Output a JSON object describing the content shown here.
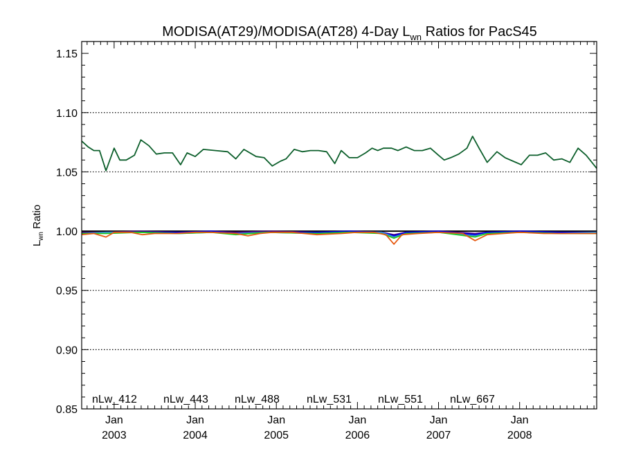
{
  "chart_data": {
    "type": "line",
    "title_main": "MODISA(AT29)/MODISA(AT28) 4-Day L",
    "title_sub": "wn",
    "title_rest": " Ratios for PacS45",
    "ylabel_main": "L",
    "ylabel_sub": "wn",
    "ylabel_rest": " Ratio",
    "ylim": [
      0.85,
      1.16
    ],
    "yticks": [
      0.85,
      0.9,
      0.95,
      1.0,
      1.05,
      1.1,
      1.15
    ],
    "ytick_labels": [
      "0.85",
      "0.90",
      "0.95",
      "1.00",
      "1.05",
      "1.10",
      "1.15"
    ],
    "xlim": [
      2002.6,
      2008.95
    ],
    "xticks": [
      {
        "value": 2003.0,
        "month": "Jan",
        "year": "2003"
      },
      {
        "value": 2004.0,
        "month": "Jan",
        "year": "2004"
      },
      {
        "value": 2005.0,
        "month": "Jan",
        "year": "2005"
      },
      {
        "value": 2006.0,
        "month": "Jan",
        "year": "2006"
      },
      {
        "value": 2007.0,
        "month": "Jan",
        "year": "2007"
      },
      {
        "value": 2008.0,
        "month": "Jan",
        "year": "2008"
      }
    ],
    "grid_y_dotted": [
      0.9,
      0.95,
      1.05,
      1.1
    ],
    "reference_line": 1.0,
    "series": [
      {
        "name": "nLw_412",
        "color": "#4b0082",
        "x": [
          2002.6,
          2002.9,
          2003.3,
          2003.8,
          2004.2,
          2004.5,
          2004.9,
          2005.5,
          2005.9,
          2006.3,
          2006.45,
          2006.6,
          2007.0,
          2007.45,
          2007.6,
          2008.0,
          2008.5,
          2008.95
        ],
        "y": [
          0.999,
          0.999,
          1.0,
          0.999,
          1.0,
          0.999,
          1.0,
          0.999,
          1.0,
          0.999,
          0.997,
          0.999,
          1.0,
          0.998,
          0.999,
          1.0,
          0.999,
          0.999
        ]
      },
      {
        "name": "nLw_443",
        "color": "#0000e6",
        "x": [
          2002.6,
          2002.9,
          2003.3,
          2003.8,
          2004.2,
          2004.5,
          2004.9,
          2005.5,
          2005.9,
          2006.3,
          2006.45,
          2006.6,
          2007.0,
          2007.45,
          2007.6,
          2008.0,
          2008.5,
          2008.95
        ],
        "y": [
          0.998,
          0.999,
          0.999,
          0.999,
          1.0,
          0.998,
          0.999,
          0.999,
          1.0,
          0.999,
          0.996,
          0.999,
          1.0,
          0.997,
          0.999,
          1.0,
          0.999,
          0.999
        ]
      },
      {
        "name": "nLw_488",
        "color": "#3a8fd6",
        "x": [
          2002.6,
          2002.9,
          2003.3,
          2003.8,
          2004.2,
          2004.5,
          2004.9,
          2005.5,
          2005.9,
          2006.3,
          2006.45,
          2006.6,
          2007.0,
          2007.45,
          2007.6,
          2008.0,
          2008.5,
          2008.95
        ],
        "y": [
          0.998,
          0.999,
          0.999,
          0.998,
          0.999,
          0.998,
          0.999,
          0.998,
          0.999,
          0.999,
          0.995,
          0.998,
          0.999,
          0.996,
          0.998,
          0.999,
          0.998,
          0.999
        ]
      },
      {
        "name": "nLw_531",
        "color": "#22cc22",
        "x": [
          2002.6,
          2002.9,
          2003.3,
          2003.8,
          2004.2,
          2004.5,
          2004.9,
          2005.5,
          2005.9,
          2006.3,
          2006.45,
          2006.6,
          2007.0,
          2007.45,
          2007.6,
          2008.0,
          2008.5,
          2008.95
        ],
        "y": [
          0.998,
          0.998,
          0.999,
          0.998,
          0.999,
          0.997,
          0.999,
          0.998,
          0.999,
          0.998,
          0.994,
          0.998,
          0.999,
          0.995,
          0.998,
          0.999,
          0.998,
          0.998
        ]
      },
      {
        "name": "nLw_551",
        "color": "#0b5e2a",
        "x": [
          2002.6,
          2002.68,
          2002.75,
          2002.82,
          2002.9,
          2003.0,
          2003.07,
          2003.15,
          2003.25,
          2003.33,
          2003.43,
          2003.52,
          2003.62,
          2003.72,
          2003.82,
          2003.9,
          2004.0,
          2004.1,
          2004.25,
          2004.4,
          2004.5,
          2004.6,
          2004.75,
          2004.85,
          2004.95,
          2005.05,
          2005.12,
          2005.22,
          2005.32,
          2005.42,
          2005.52,
          2005.62,
          2005.72,
          2005.8,
          2005.9,
          2006.0,
          2006.1,
          2006.18,
          2006.25,
          2006.32,
          2006.42,
          2006.5,
          2006.6,
          2006.7,
          2006.8,
          2006.9,
          2007.0,
          2007.07,
          2007.15,
          2007.25,
          2007.35,
          2007.42,
          2007.5,
          2007.6,
          2007.72,
          2007.82,
          2007.92,
          2008.02,
          2008.12,
          2008.22,
          2008.32,
          2008.42,
          2008.52,
          2008.62,
          2008.72,
          2008.82,
          2008.95
        ],
        "y": [
          1.076,
          1.071,
          1.068,
          1.068,
          1.051,
          1.07,
          1.06,
          1.06,
          1.064,
          1.077,
          1.072,
          1.065,
          1.066,
          1.066,
          1.056,
          1.066,
          1.063,
          1.069,
          1.068,
          1.067,
          1.061,
          1.069,
          1.063,
          1.062,
          1.055,
          1.059,
          1.061,
          1.069,
          1.067,
          1.068,
          1.068,
          1.067,
          1.057,
          1.068,
          1.062,
          1.062,
          1.066,
          1.07,
          1.068,
          1.07,
          1.07,
          1.068,
          1.071,
          1.068,
          1.068,
          1.07,
          1.064,
          1.06,
          1.062,
          1.065,
          1.07,
          1.08,
          1.07,
          1.058,
          1.067,
          1.062,
          1.059,
          1.056,
          1.064,
          1.064,
          1.066,
          1.06,
          1.061,
          1.058,
          1.07,
          1.064,
          1.053
        ]
      },
      {
        "name": "nLw_667",
        "color": "#e65a12",
        "x": [
          2002.6,
          2002.75,
          2002.9,
          2003.0,
          2003.2,
          2003.35,
          2003.5,
          2003.75,
          2004.0,
          2004.2,
          2004.5,
          2004.65,
          2004.8,
          2004.95,
          2005.2,
          2005.5,
          2005.8,
          2006.0,
          2006.2,
          2006.35,
          2006.45,
          2006.55,
          2006.75,
          2007.0,
          2007.3,
          2007.45,
          2007.6,
          2007.8,
          2008.0,
          2008.3,
          2008.5,
          2008.7,
          2008.95
        ],
        "y": [
          0.997,
          0.998,
          0.995,
          0.999,
          0.999,
          0.997,
          0.998,
          0.998,
          0.999,
          0.999,
          0.998,
          0.996,
          0.998,
          0.999,
          0.999,
          0.997,
          0.998,
          0.999,
          0.999,
          0.997,
          0.989,
          0.997,
          0.998,
          0.999,
          0.998,
          0.992,
          0.997,
          0.998,
          0.999,
          0.998,
          0.998,
          0.998,
          0.998
        ]
      }
    ]
  }
}
